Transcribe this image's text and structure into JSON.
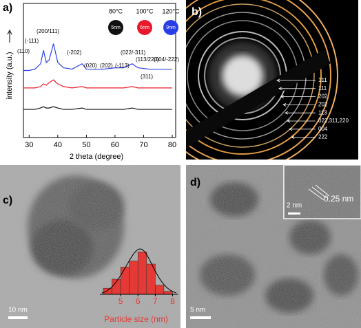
{
  "panels": {
    "a": {
      "label": "a)",
      "chart": {
        "type": "line",
        "x_label": "2 theta (degree)",
        "y_label": "intensity (a.u.)",
        "x": [
          28,
          30,
          32,
          34,
          35,
          36,
          37,
          38.5,
          40,
          42,
          45,
          48.5,
          50,
          53,
          56,
          60,
          63,
          66,
          68,
          72,
          76,
          80
        ],
        "series": [
          {
            "name": "80°C",
            "size": "5nm",
            "color": "#111111",
            "values": [
              21,
              21,
              21,
              22,
              23,
              22,
              22,
              23,
              22,
              21,
              21,
              22,
              21,
              21,
              21,
              21,
              21,
              22,
              21,
              21,
              21,
              21
            ]
          },
          {
            "name": "100°C",
            "size": "6nm",
            "color": "#e8192c",
            "values": [
              37,
              37,
              37,
              38,
              40,
              39,
              41,
              43,
              40,
              38,
              37,
              38,
              37,
              37,
              37,
              37,
              37,
              38,
              37,
              37,
              37,
              37
            ]
          },
          {
            "name": "120°C",
            "size": "9nm",
            "color": "#2a3ee8",
            "values": [
              50,
              50,
              51,
              55,
              65,
              56,
              58,
              70,
              56,
              52,
              51,
              55,
              51,
              51,
              51,
              52,
              52,
              55,
              52,
              51,
              51,
              51
            ]
          }
        ],
        "xlim": [
          28,
          80
        ],
        "ylim": [
          0,
          100
        ],
        "xticks": [
          30,
          40,
          50,
          60,
          70,
          80
        ],
        "annotations": [
          "(110)",
          "(-111)",
          "(200/111)",
          "(-202)",
          "(020)",
          "(202)",
          "(-113)",
          "(022/-311)",
          "(113/220)",
          "(004/-222)",
          "(311)"
        ]
      }
    },
    "b": {
      "label": "b)",
      "ring_labels": [
        "1̄11",
        "111",
        "202",
        "2̄02",
        "113",
        "022,311,220",
        "004",
        "222"
      ]
    },
    "c": {
      "label": "c)",
      "scale_bar": "10 nm",
      "histogram": {
        "type": "histogram",
        "bins": [
          4,
          4.5,
          5,
          5.5,
          6,
          6.5,
          7,
          7.5,
          8
        ],
        "counts": [
          2,
          5,
          9,
          11,
          14,
          10,
          3,
          1
        ],
        "color": "#e53935",
        "xlim": [
          3.8,
          8.3
        ],
        "ylim": [
          0,
          15
        ],
        "xticks": [
          5,
          6,
          7,
          8
        ],
        "x_label": "Particle size (nm)"
      }
    },
    "d": {
      "label": "d)",
      "scale_bar": "5 nm",
      "inset_scale_bar": "2 nm",
      "d_spacing": "0.25 nm"
    }
  }
}
